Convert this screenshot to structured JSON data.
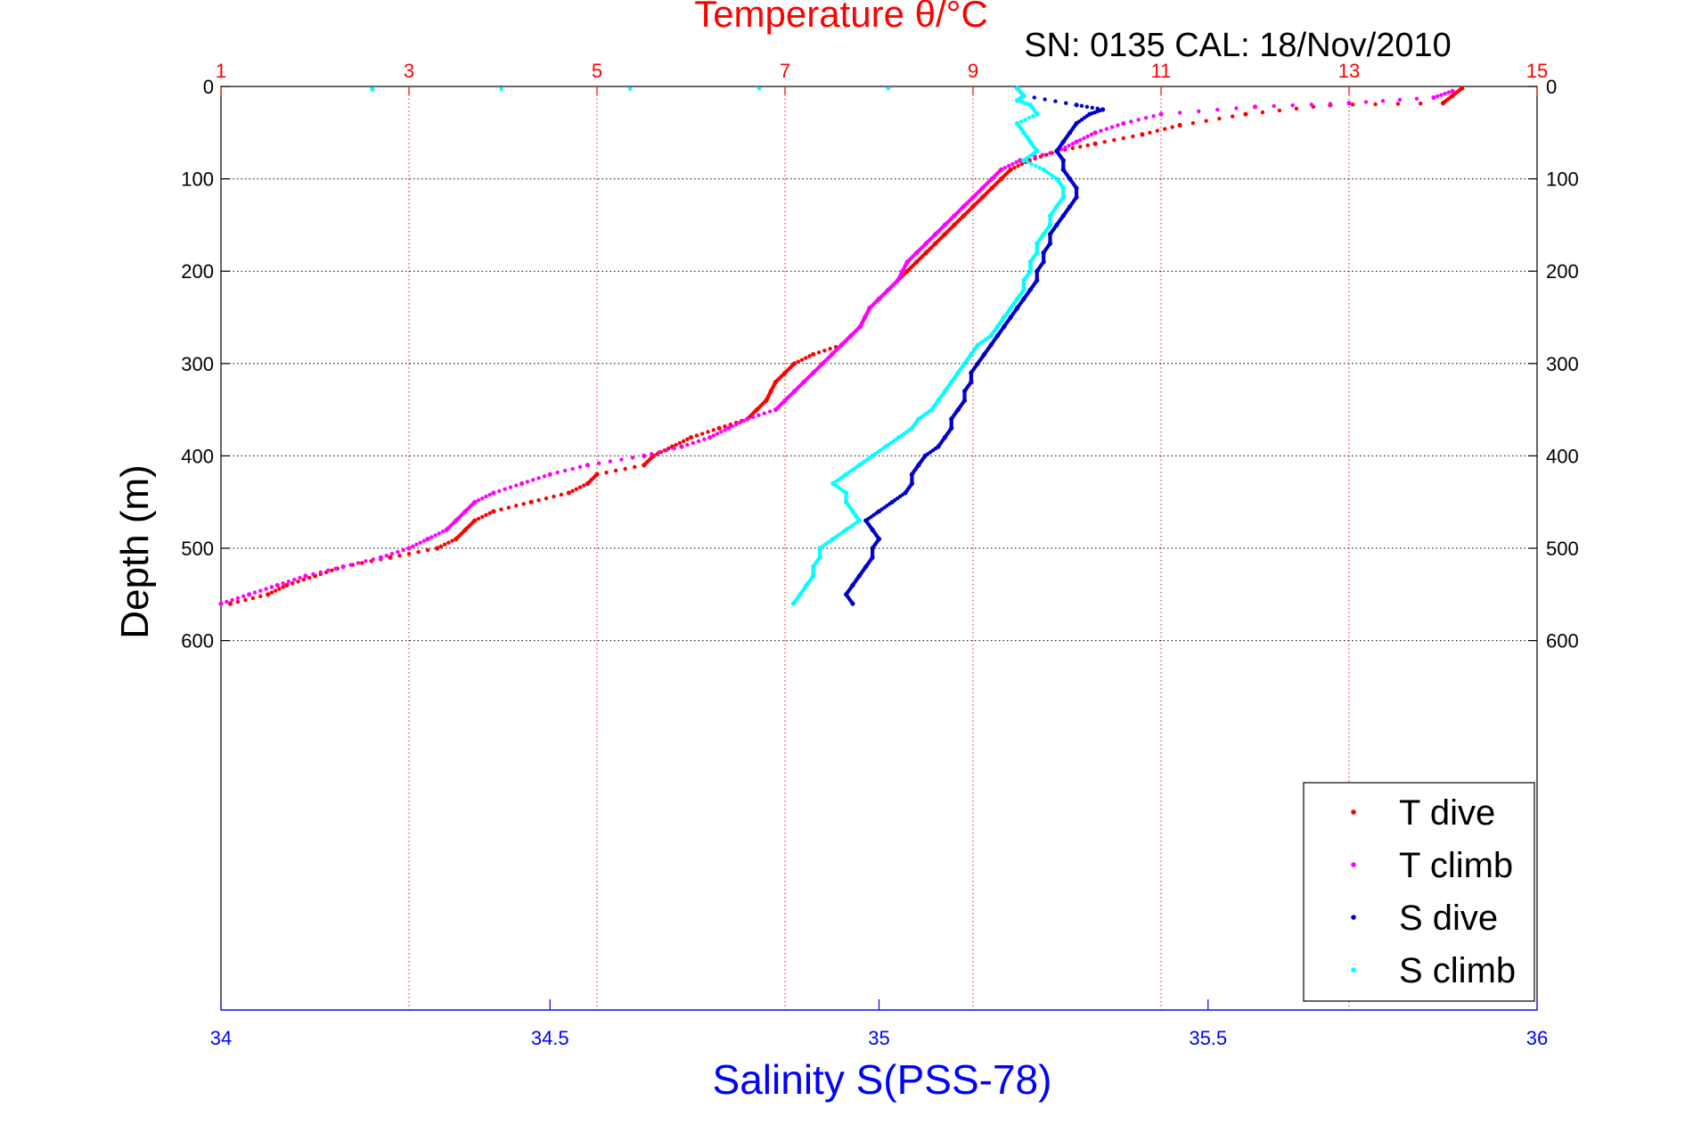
{
  "chart_data": {
    "type": "scatter",
    "title": "Temperature θ/°C",
    "subtitle": "SN: 0135  CAL: 18/Nov/2010",
    "xlabel_bottom": "Salinity S(PSS-78)",
    "ylabel": "Depth (m)",
    "x_top": {
      "range": [
        1,
        15
      ],
      "ticks": [
        "1",
        "3",
        "5",
        "7",
        "9",
        "11",
        "13",
        "15"
      ],
      "color": "#ff0000"
    },
    "x_bottom": {
      "range": [
        34,
        36
      ],
      "ticks": [
        "34",
        "34.5",
        "35",
        "35.5",
        "36"
      ],
      "color": "#0000ff"
    },
    "y": {
      "range": [
        0,
        1000
      ],
      "reversed": true,
      "ticks": [
        "0",
        "100",
        "200",
        "300",
        "400",
        "500",
        "600"
      ]
    },
    "grid": true,
    "legend_position": "bottom-right",
    "series": [
      {
        "name": "T dive",
        "axis": "top",
        "color": "#ff0000",
        "points": [
          [
            14.2,
            2
          ],
          [
            14.1,
            10
          ],
          [
            14.0,
            18
          ],
          [
            12.8,
            20
          ],
          [
            11.9,
            30
          ],
          [
            11.2,
            42
          ],
          [
            10.8,
            52
          ],
          [
            10.3,
            62
          ],
          [
            9.9,
            70
          ],
          [
            9.6,
            80
          ],
          [
            9.4,
            90
          ],
          [
            9.3,
            100
          ],
          [
            9.2,
            110
          ],
          [
            9.1,
            120
          ],
          [
            9.0,
            130
          ],
          [
            8.9,
            140
          ],
          [
            8.8,
            150
          ],
          [
            8.7,
            160
          ],
          [
            8.6,
            170
          ],
          [
            8.5,
            180
          ],
          [
            8.4,
            190
          ],
          [
            8.3,
            200
          ],
          [
            8.2,
            210
          ],
          [
            8.1,
            220
          ],
          [
            8.0,
            230
          ],
          [
            7.9,
            240
          ],
          [
            7.85,
            250
          ],
          [
            7.8,
            260
          ],
          [
            7.7,
            270
          ],
          [
            7.6,
            280
          ],
          [
            7.3,
            290
          ],
          [
            7.1,
            300
          ],
          [
            7.0,
            310
          ],
          [
            6.9,
            320
          ],
          [
            6.85,
            330
          ],
          [
            6.8,
            340
          ],
          [
            6.7,
            350
          ],
          [
            6.6,
            360
          ],
          [
            6.3,
            370
          ],
          [
            6.0,
            380
          ],
          [
            5.8,
            390
          ],
          [
            5.6,
            400
          ],
          [
            5.5,
            410
          ],
          [
            5.0,
            420
          ],
          [
            4.9,
            430
          ],
          [
            4.7,
            440
          ],
          [
            4.3,
            450
          ],
          [
            3.9,
            460
          ],
          [
            3.7,
            470
          ],
          [
            3.6,
            480
          ],
          [
            3.5,
            490
          ],
          [
            3.3,
            500
          ],
          [
            2.8,
            510
          ],
          [
            2.3,
            520
          ],
          [
            2.0,
            530
          ],
          [
            1.7,
            540
          ],
          [
            1.5,
            550
          ],
          [
            1.1,
            560
          ]
        ]
      },
      {
        "name": "T climb",
        "axis": "top",
        "color": "#ff00ff",
        "points": [
          [
            14.1,
            5
          ],
          [
            13.9,
            12
          ],
          [
            13.0,
            18
          ],
          [
            12.0,
            22
          ],
          [
            11.0,
            30
          ],
          [
            10.6,
            40
          ],
          [
            10.3,
            50
          ],
          [
            10.1,
            60
          ],
          [
            9.9,
            70
          ],
          [
            9.5,
            80
          ],
          [
            9.3,
            90
          ],
          [
            9.2,
            100
          ],
          [
            9.1,
            110
          ],
          [
            9.0,
            120
          ],
          [
            8.9,
            130
          ],
          [
            8.8,
            140
          ],
          [
            8.7,
            150
          ],
          [
            8.6,
            160
          ],
          [
            8.5,
            170
          ],
          [
            8.4,
            180
          ],
          [
            8.3,
            190
          ],
          [
            8.25,
            200
          ],
          [
            8.2,
            210
          ],
          [
            8.1,
            220
          ],
          [
            8.0,
            230
          ],
          [
            7.9,
            240
          ],
          [
            7.85,
            250
          ],
          [
            7.8,
            260
          ],
          [
            7.7,
            270
          ],
          [
            7.6,
            280
          ],
          [
            7.5,
            290
          ],
          [
            7.4,
            300
          ],
          [
            7.3,
            310
          ],
          [
            7.2,
            320
          ],
          [
            7.1,
            330
          ],
          [
            7.0,
            340
          ],
          [
            6.9,
            350
          ],
          [
            6.6,
            360
          ],
          [
            6.4,
            370
          ],
          [
            6.2,
            380
          ],
          [
            5.9,
            390
          ],
          [
            5.5,
            400
          ],
          [
            4.9,
            410
          ],
          [
            4.5,
            420
          ],
          [
            4.2,
            430
          ],
          [
            3.9,
            440
          ],
          [
            3.7,
            450
          ],
          [
            3.6,
            460
          ],
          [
            3.5,
            470
          ],
          [
            3.4,
            480
          ],
          [
            3.2,
            490
          ],
          [
            3.0,
            500
          ],
          [
            2.7,
            510
          ],
          [
            2.3,
            520
          ],
          [
            1.9,
            530
          ],
          [
            1.6,
            540
          ],
          [
            1.3,
            550
          ],
          [
            1.0,
            560
          ]
        ]
      },
      {
        "name": "S dive",
        "axis": "bottom",
        "color": "#0000cc",
        "points": [
          [
            35.21,
            2
          ],
          [
            35.22,
            10
          ],
          [
            35.3,
            20
          ],
          [
            35.34,
            25
          ],
          [
            35.32,
            30
          ],
          [
            35.3,
            40
          ],
          [
            35.29,
            50
          ],
          [
            35.28,
            60
          ],
          [
            35.27,
            70
          ],
          [
            35.28,
            80
          ],
          [
            35.28,
            90
          ],
          [
            35.29,
            100
          ],
          [
            35.3,
            110
          ],
          [
            35.3,
            120
          ],
          [
            35.29,
            130
          ],
          [
            35.28,
            140
          ],
          [
            35.27,
            150
          ],
          [
            35.26,
            160
          ],
          [
            35.26,
            170
          ],
          [
            35.25,
            180
          ],
          [
            35.25,
            190
          ],
          [
            35.24,
            200
          ],
          [
            35.24,
            210
          ],
          [
            35.23,
            220
          ],
          [
            35.22,
            230
          ],
          [
            35.21,
            240
          ],
          [
            35.2,
            250
          ],
          [
            35.19,
            260
          ],
          [
            35.18,
            270
          ],
          [
            35.17,
            280
          ],
          [
            35.16,
            290
          ],
          [
            35.15,
            300
          ],
          [
            35.14,
            310
          ],
          [
            35.14,
            320
          ],
          [
            35.13,
            330
          ],
          [
            35.13,
            340
          ],
          [
            35.12,
            350
          ],
          [
            35.11,
            360
          ],
          [
            35.11,
            370
          ],
          [
            35.1,
            380
          ],
          [
            35.09,
            390
          ],
          [
            35.07,
            400
          ],
          [
            35.06,
            410
          ],
          [
            35.05,
            420
          ],
          [
            35.05,
            430
          ],
          [
            35.04,
            440
          ],
          [
            35.02,
            450
          ],
          [
            35.0,
            460
          ],
          [
            34.98,
            470
          ],
          [
            34.99,
            480
          ],
          [
            35.0,
            490
          ],
          [
            34.99,
            500
          ],
          [
            34.99,
            510
          ],
          [
            34.98,
            520
          ],
          [
            34.97,
            530
          ],
          [
            34.96,
            540
          ],
          [
            34.95,
            550
          ],
          [
            34.96,
            560
          ]
        ]
      },
      {
        "name": "S climb",
        "axis": "bottom",
        "color": "#00ffff",
        "points": [
          [
            34.23,
            3
          ],
          [
            35.21,
            2
          ],
          [
            35.22,
            10
          ],
          [
            35.21,
            15
          ],
          [
            35.23,
            20
          ],
          [
            35.24,
            30
          ],
          [
            35.21,
            40
          ],
          [
            35.22,
            50
          ],
          [
            35.23,
            60
          ],
          [
            35.24,
            70
          ],
          [
            35.22,
            80
          ],
          [
            35.25,
            90
          ],
          [
            35.27,
            100
          ],
          [
            35.28,
            110
          ],
          [
            35.28,
            120
          ],
          [
            35.27,
            130
          ],
          [
            35.26,
            140
          ],
          [
            35.26,
            150
          ],
          [
            35.25,
            160
          ],
          [
            35.24,
            170
          ],
          [
            35.24,
            180
          ],
          [
            35.23,
            190
          ],
          [
            35.23,
            200
          ],
          [
            35.22,
            210
          ],
          [
            35.22,
            220
          ],
          [
            35.21,
            230
          ],
          [
            35.2,
            240
          ],
          [
            35.19,
            250
          ],
          [
            35.18,
            260
          ],
          [
            35.17,
            270
          ],
          [
            35.15,
            280
          ],
          [
            35.14,
            290
          ],
          [
            35.13,
            300
          ],
          [
            35.12,
            310
          ],
          [
            35.11,
            320
          ],
          [
            35.1,
            330
          ],
          [
            35.09,
            340
          ],
          [
            35.08,
            350
          ],
          [
            35.06,
            360
          ],
          [
            35.05,
            370
          ],
          [
            35.03,
            380
          ],
          [
            35.01,
            390
          ],
          [
            34.99,
            400
          ],
          [
            34.97,
            410
          ],
          [
            34.95,
            420
          ],
          [
            34.93,
            430
          ],
          [
            34.95,
            440
          ],
          [
            34.95,
            450
          ],
          [
            34.96,
            460
          ],
          [
            34.97,
            470
          ],
          [
            34.95,
            480
          ],
          [
            34.93,
            490
          ],
          [
            34.91,
            500
          ],
          [
            34.91,
            510
          ],
          [
            34.9,
            520
          ],
          [
            34.9,
            530
          ],
          [
            34.89,
            540
          ],
          [
            34.88,
            550
          ],
          [
            34.87,
            560
          ]
        ]
      }
    ]
  }
}
